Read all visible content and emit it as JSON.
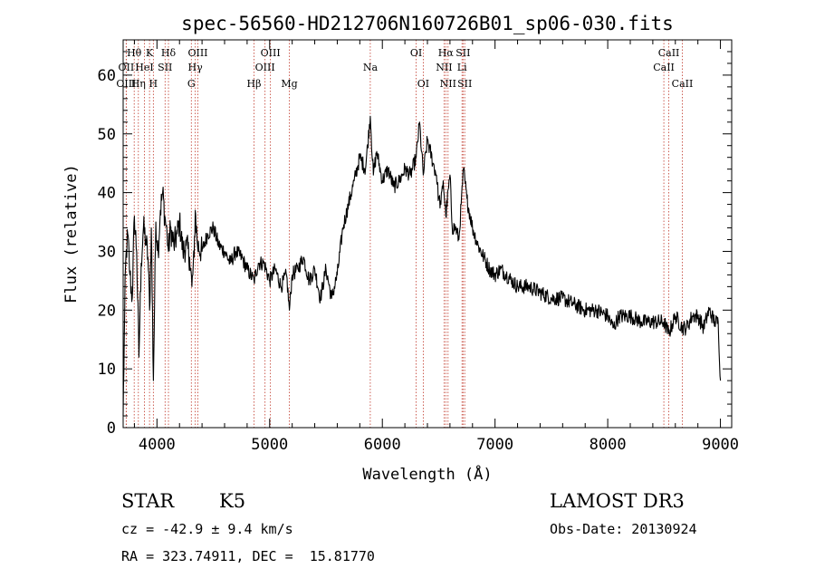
{
  "chart_data": {
    "type": "line",
    "title": "spec-56560-HD212706N160726B01_sp06-030.fits",
    "xlabel": "Wavelength (Å)",
    "ylabel": "Flux (relative)",
    "xlim": [
      3700,
      9100
    ],
    "ylim": [
      0,
      66
    ],
    "xticks": [
      4000,
      5000,
      6000,
      7000,
      8000,
      9000
    ],
    "yticks": [
      0,
      10,
      20,
      30,
      40,
      50,
      60
    ],
    "grid": false,
    "series": [
      {
        "x": [
          3700,
          3710,
          3720,
          3740,
          3760,
          3780,
          3800,
          3820,
          3840,
          3860,
          3880,
          3900,
          3920,
          3935,
          3950,
          3968,
          3990,
          4010,
          4030,
          4050,
          4070,
          4090,
          4102,
          4120,
          4150,
          4180,
          4200,
          4230,
          4260,
          4290,
          4310,
          4330,
          4340,
          4360,
          4400,
          4450,
          4500,
          4550,
          4600,
          4650,
          4700,
          4750,
          4800,
          4861,
          4900,
          4950,
          5000,
          5050,
          5100,
          5150,
          5175,
          5200,
          5250,
          5300,
          5350,
          5400,
          5450,
          5500,
          5550,
          5600,
          5650,
          5700,
          5750,
          5800,
          5850,
          5893,
          5920,
          5950,
          6000,
          6050,
          6100,
          6150,
          6200,
          6250,
          6300,
          6330,
          6363,
          6400,
          6450,
          6480,
          6500,
          6520,
          6540,
          6563,
          6600,
          6620,
          6650,
          6680,
          6700,
          6720,
          6750,
          6800,
          6850,
          6900,
          6950,
          7000,
          7050,
          7100,
          7150,
          7200,
          7300,
          7400,
          7500,
          7600,
          7700,
          7800,
          7900,
          8000,
          8050,
          8100,
          8200,
          8300,
          8400,
          8498,
          8542,
          8600,
          8662,
          8700,
          8750,
          8800,
          8850,
          8900,
          8950,
          8980,
          9000
        ],
        "y": [
          2,
          15,
          27,
          33,
          26,
          22,
          36,
          30,
          12,
          28,
          34,
          32,
          29,
          20,
          34,
          8,
          35,
          30,
          37,
          40,
          36,
          33,
          30,
          34,
          31,
          33,
          35,
          30,
          31,
          29,
          24,
          29,
          37,
          31,
          30,
          33,
          34,
          31,
          30,
          28,
          30,
          29,
          27,
          25,
          28,
          28,
          25,
          27,
          24,
          26,
          20,
          26,
          27,
          29,
          25,
          27,
          22,
          27,
          22,
          26,
          34,
          38,
          42,
          46,
          44,
          53,
          43,
          47,
          42,
          44,
          41,
          42,
          44,
          43,
          46,
          52,
          43,
          49,
          45,
          43,
          39,
          38,
          42,
          36,
          43,
          34,
          34,
          32,
          38,
          44,
          39,
          34,
          31,
          29,
          27,
          26,
          27,
          26,
          25,
          24,
          24,
          23,
          22,
          22,
          21,
          20,
          20,
          19,
          17,
          19,
          19,
          18,
          18,
          18,
          16,
          19,
          17,
          17,
          19,
          19,
          17,
          20,
          18,
          18,
          8
        ]
      }
    ],
    "lines": [
      {
        "name": "Hθ",
        "wl": 3798,
        "row": 1
      },
      {
        "name": "OII",
        "wl": 3727,
        "row": 2
      },
      {
        "name": "OIII",
        "wl": 3727,
        "row": 3
      },
      {
        "name": "K",
        "wl": 3934,
        "row": 1
      },
      {
        "name": "HeI",
        "wl": 3889,
        "row": 2
      },
      {
        "name": "Hη",
        "wl": 3835,
        "row": 3
      },
      {
        "name": "Hδ",
        "wl": 4102,
        "row": 1
      },
      {
        "name": "SII",
        "wl": 4072,
        "row": 2
      },
      {
        "name": "H",
        "wl": 3968,
        "row": 3
      },
      {
        "name": "OIII",
        "wl": 4363,
        "row": 1
      },
      {
        "name": "Hγ",
        "wl": 4340,
        "row": 2
      },
      {
        "name": "G",
        "wl": 4305,
        "row": 3
      },
      {
        "name": "OIII",
        "wl": 5007,
        "row": 1
      },
      {
        "name": "OIII",
        "wl": 4959,
        "row": 2
      },
      {
        "name": "Hβ",
        "wl": 4861,
        "row": 3
      },
      {
        "name": "Mg",
        "wl": 5175,
        "row": 3
      },
      {
        "name": "Na",
        "wl": 5893,
        "row": 2
      },
      {
        "name": "OI",
        "wl": 6300,
        "row": 1
      },
      {
        "name": "OI",
        "wl": 6363,
        "row": 3
      },
      {
        "name": "Hα",
        "wl": 6563,
        "row": 1
      },
      {
        "name": "SII",
        "wl": 6716,
        "row": 1
      },
      {
        "name": "NII",
        "wl": 6548,
        "row": 2
      },
      {
        "name": "Li",
        "wl": 6707,
        "row": 2
      },
      {
        "name": "NII",
        "wl": 6583,
        "row": 3
      },
      {
        "name": "SII",
        "wl": 6731,
        "row": 3
      },
      {
        "name": "CaII",
        "wl": 8542,
        "row": 1
      },
      {
        "name": "CaII",
        "wl": 8498,
        "row": 2
      },
      {
        "name": "CaII",
        "wl": 8662,
        "row": 3
      }
    ],
    "colors": {
      "spectrum": "#000000",
      "line_marker": "#c0392b"
    }
  },
  "info": {
    "class": "STAR",
    "subclass": "K5",
    "survey": "LAMOST DR3",
    "cz": "cz = -42.9 ± 9.4 km/s",
    "obs_date": "Obs-Date: 20130924",
    "radec": "RA = 323.74911, DEC =  15.81770"
  }
}
